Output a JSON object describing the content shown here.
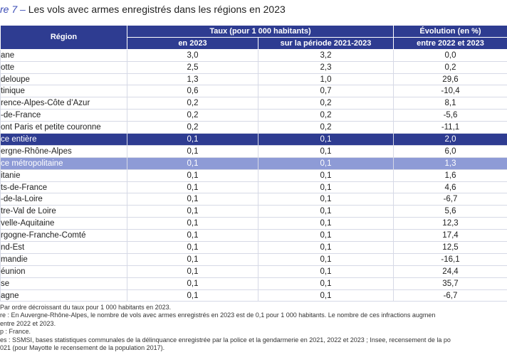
{
  "title_prefix": "re 7 –",
  "title": "Les vols avec armes enregistrés dans les régions en 2023",
  "table": {
    "header": {
      "region": "Région",
      "taux": "Taux (pour 1 000 habitants)",
      "en2023": "en 2023",
      "periode": "sur la période 2021-2023",
      "evolution1": "Évolution (en %)",
      "evolution2": "entre 2022 et 2023"
    },
    "rows": [
      [
        "ane",
        "3,0",
        "3,2",
        "0,0"
      ],
      [
        "otte",
        "2,5",
        "2,3",
        "0,2"
      ],
      [
        "deloupe",
        "1,3",
        "1,0",
        "29,6"
      ],
      [
        "tinique",
        "0,6",
        "0,7",
        "-10,4"
      ],
      [
        "rence-Alpes-Côte d’Azur",
        "0,2",
        "0,2",
        "8,1"
      ],
      [
        "-de-France",
        "0,2",
        "0,2",
        "-5,6"
      ],
      [
        "ont Paris et petite couronne",
        "0,2",
        "0,2",
        "-11,1"
      ],
      [
        "ce entière",
        "0,1",
        "0,1",
        "2,0"
      ],
      [
        "ergne-Rhône-Alpes",
        "0,1",
        "0,1",
        "6,0"
      ],
      [
        "ce métropolitaine",
        "0,1",
        "0,1",
        "1,3"
      ],
      [
        "itanie",
        "0,1",
        "0,1",
        "1,6"
      ],
      [
        "ts-de-France",
        "0,1",
        "0,1",
        "4,6"
      ],
      [
        "-de-la-Loire",
        "0,1",
        "0,1",
        "-6,7"
      ],
      [
        "tre-Val de Loire",
        "0,1",
        "0,1",
        "5,6"
      ],
      [
        "velle-Aquitaine",
        "0,1",
        "0,1",
        "12,3"
      ],
      [
        "rgogne-Franche-Comté",
        "0,1",
        "0,1",
        "17,4"
      ],
      [
        "nd-Est",
        "0,1",
        "0,1",
        "12,5"
      ],
      [
        "mandie",
        "0,1",
        "0,1",
        "-16,1"
      ],
      [
        "éunion",
        "0,1",
        "0,1",
        "24,4"
      ],
      [
        "se",
        "0,1",
        "0,1",
        "35,7"
      ],
      [
        "agne",
        "0,1",
        "0,1",
        "-6,7"
      ]
    ]
  },
  "notes": [
    " Par ordre décroissant du taux pour 1 000 habitants en 2023.",
    "re : En Auvergne-Rhône-Alpes, le nombre de vols avec armes enregistrés en 2023 est de 0,1 pour 1 000 habitants. Le nombre de ces infractions augmen",
    "entre 2022 et 2023.",
    "p : France.",
    "es : SSMSI, bases statistiques communales de la délinquance enregistrée par la police et la gendarmerie en 2021, 2022 et 2023 ; Insee, recensement de la po",
    "021 (pour Mayotte le recensement de la population 2017)."
  ]
}
